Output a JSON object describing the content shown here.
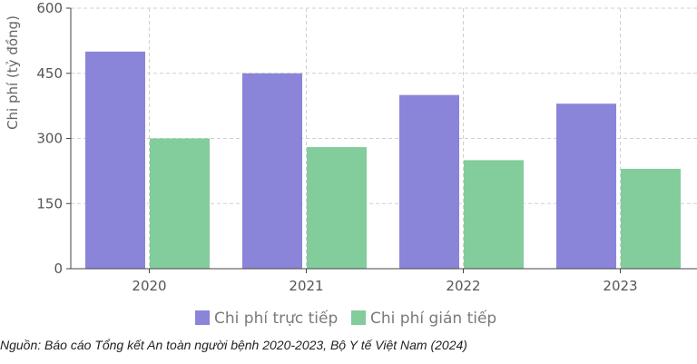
{
  "chart_data": {
    "type": "bar",
    "categories": [
      "2020",
      "2021",
      "2022",
      "2023"
    ],
    "series": [
      {
        "name": "Chi phí trực tiếp",
        "values": [
          500,
          450,
          400,
          380
        ],
        "color": "#8a85d9"
      },
      {
        "name": "Chi phí gián tiếp",
        "values": [
          300,
          280,
          250,
          230
        ],
        "color": "#83cc9c"
      }
    ],
    "title": "",
    "xlabel": "",
    "ylabel": "Chi phí (tỷ đồng)",
    "ylim": [
      0,
      600
    ],
    "yticks": [
      "0",
      "150",
      "300",
      "450",
      "600"
    ],
    "grid": true,
    "legend": "bottom"
  },
  "source_note": "Nguồn: Báo cáo Tổng kết An toàn người bệnh 2020-2023, Bộ Y tế Việt Nam (2024)"
}
